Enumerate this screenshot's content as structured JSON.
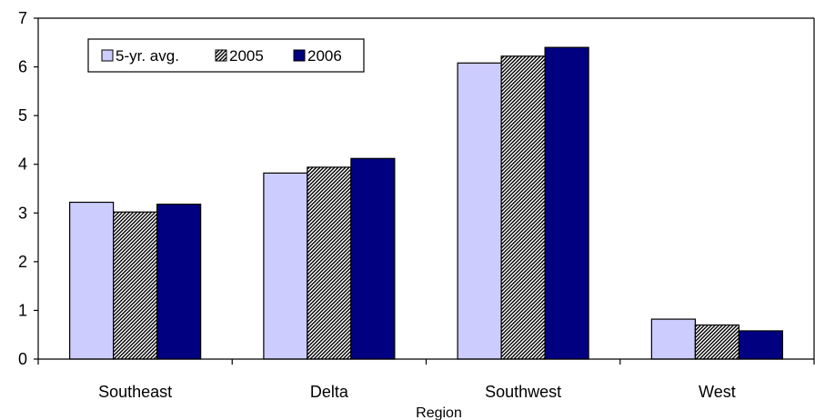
{
  "chart_data": {
    "type": "bar",
    "title": "",
    "xlabel": "Region",
    "ylabel": "",
    "categories": [
      "Southeast",
      "Delta",
      "Southwest",
      "West"
    ],
    "series": [
      {
        "name": "5-yr. avg.",
        "values": [
          3.22,
          3.82,
          6.08,
          0.82
        ],
        "color": "#ccccff",
        "pattern": "solid"
      },
      {
        "name": "2005",
        "values": [
          3.02,
          3.94,
          6.22,
          0.7
        ],
        "color": "#ffffff",
        "pattern": "hatched"
      },
      {
        "name": "2006",
        "values": [
          3.18,
          4.12,
          6.4,
          0.58
        ],
        "color": "#000080",
        "pattern": "solid"
      }
    ],
    "ylim": [
      0,
      7
    ],
    "yticks": [
      0,
      1,
      2,
      3,
      4,
      5,
      6,
      7
    ],
    "grid": false,
    "legend_position": "top-left"
  }
}
